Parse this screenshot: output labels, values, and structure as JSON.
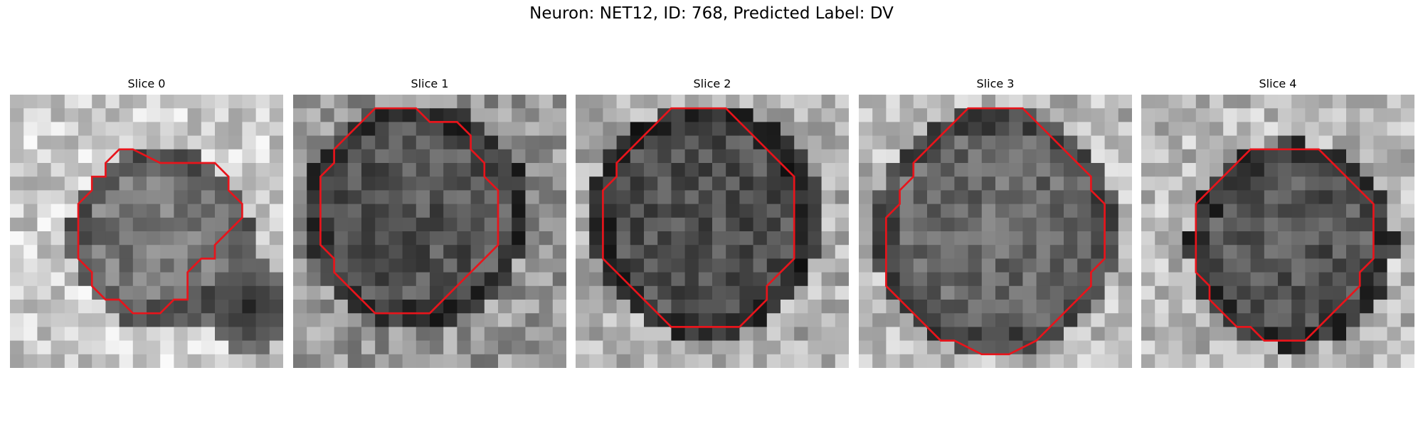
{
  "figure": {
    "title": "Neuron: NET12, ID: 768, Predicted Label: DV"
  },
  "colors": {
    "contour": "#e8141b",
    "background": "#ffffff"
  },
  "panels": [
    {
      "title": "Slice 0",
      "content": "grayscale microscopy crop with a bright surround and a darker gray roughly circular cell; red traced outline around the cell; darkest region at the lower right",
      "contour": [
        [
          11,
          5
        ],
        [
          15,
          5
        ],
        [
          16,
          6
        ],
        [
          16,
          7
        ],
        [
          17,
          8
        ],
        [
          17,
          9
        ],
        [
          16,
          10
        ],
        [
          15,
          11
        ],
        [
          15,
          12
        ],
        [
          14,
          12
        ],
        [
          13,
          13
        ],
        [
          13,
          15
        ],
        [
          12,
          15
        ],
        [
          11,
          16
        ],
        [
          9,
          16
        ],
        [
          8,
          15
        ],
        [
          7,
          15
        ],
        [
          6,
          14
        ],
        [
          6,
          13
        ],
        [
          5,
          12
        ],
        [
          5,
          11
        ],
        [
          5,
          10
        ],
        [
          5,
          9
        ],
        [
          5,
          8
        ],
        [
          6,
          7
        ],
        [
          6,
          6
        ],
        [
          7,
          6
        ],
        [
          7,
          5
        ],
        [
          8,
          4
        ],
        [
          9,
          4
        ]
      ]
    },
    {
      "title": "Slice 1",
      "content": "grayscale crop with a dark roughly circular cell body filling most of the frame; red traced outline",
      "contour": [
        [
          6,
          1
        ],
        [
          9,
          1
        ],
        [
          10,
          2
        ],
        [
          12,
          2
        ],
        [
          13,
          3
        ],
        [
          13,
          4
        ],
        [
          14,
          5
        ],
        [
          14,
          6
        ],
        [
          15,
          7
        ],
        [
          15,
          8
        ],
        [
          15,
          9
        ],
        [
          15,
          10
        ],
        [
          15,
          11
        ],
        [
          14,
          12
        ],
        [
          13,
          13
        ],
        [
          12,
          14
        ],
        [
          11,
          15
        ],
        [
          10,
          16
        ],
        [
          9,
          16
        ],
        [
          8,
          16
        ],
        [
          7,
          16
        ],
        [
          6,
          16
        ],
        [
          5,
          15
        ],
        [
          4,
          14
        ],
        [
          3,
          13
        ],
        [
          3,
          12
        ],
        [
          2,
          11
        ],
        [
          2,
          10
        ],
        [
          2,
          9
        ],
        [
          2,
          8
        ],
        [
          2,
          7
        ],
        [
          2,
          6
        ],
        [
          3,
          5
        ],
        [
          3,
          4
        ],
        [
          4,
          3
        ],
        [
          5,
          2
        ]
      ]
    },
    {
      "title": "Slice 2",
      "content": "grayscale crop with a large dark circular cell centered in the frame; red traced outline",
      "contour": [
        [
          8,
          1
        ],
        [
          11,
          1
        ],
        [
          12,
          2
        ],
        [
          13,
          3
        ],
        [
          14,
          4
        ],
        [
          15,
          5
        ],
        [
          16,
          6
        ],
        [
          16,
          7
        ],
        [
          16,
          8
        ],
        [
          16,
          9
        ],
        [
          16,
          10
        ],
        [
          16,
          11
        ],
        [
          16,
          12
        ],
        [
          15,
          13
        ],
        [
          14,
          14
        ],
        [
          14,
          15
        ],
        [
          13,
          16
        ],
        [
          12,
          17
        ],
        [
          10,
          17
        ],
        [
          8,
          17
        ],
        [
          7,
          17
        ],
        [
          6,
          16
        ],
        [
          5,
          15
        ],
        [
          4,
          14
        ],
        [
          3,
          13
        ],
        [
          2,
          12
        ],
        [
          2,
          11
        ],
        [
          2,
          10
        ],
        [
          2,
          9
        ],
        [
          2,
          8
        ],
        [
          2,
          7
        ],
        [
          3,
          6
        ],
        [
          3,
          5
        ],
        [
          4,
          4
        ],
        [
          5,
          3
        ],
        [
          6,
          2
        ],
        [
          7,
          1
        ]
      ]
    },
    {
      "title": "Slice 3",
      "content": "grayscale crop with a large dark circular cell centered in the frame; red traced outline",
      "contour": [
        [
          8,
          1
        ],
        [
          12,
          1
        ],
        [
          13,
          2
        ],
        [
          14,
          3
        ],
        [
          15,
          4
        ],
        [
          16,
          5
        ],
        [
          17,
          6
        ],
        [
          17,
          7
        ],
        [
          18,
          8
        ],
        [
          18,
          9
        ],
        [
          18,
          10
        ],
        [
          18,
          11
        ],
        [
          18,
          12
        ],
        [
          17,
          13
        ],
        [
          17,
          14
        ],
        [
          16,
          15
        ],
        [
          15,
          16
        ],
        [
          14,
          17
        ],
        [
          13,
          18
        ],
        [
          11,
          19
        ],
        [
          9,
          19
        ],
        [
          7,
          18
        ],
        [
          6,
          18
        ],
        [
          5,
          17
        ],
        [
          4,
          16
        ],
        [
          3,
          15
        ],
        [
          2,
          14
        ],
        [
          2,
          13
        ],
        [
          2,
          12
        ],
        [
          2,
          11
        ],
        [
          2,
          10
        ],
        [
          2,
          9
        ],
        [
          3,
          8
        ],
        [
          3,
          7
        ],
        [
          4,
          6
        ],
        [
          4,
          5
        ],
        [
          5,
          4
        ],
        [
          6,
          3
        ],
        [
          7,
          2
        ]
      ]
    },
    {
      "title": "Slice 4",
      "content": "grayscale crop with a dark circular cell slightly below center; red traced outline",
      "contour": [
        [
          8,
          4
        ],
        [
          13,
          4
        ],
        [
          14,
          5
        ],
        [
          15,
          6
        ],
        [
          16,
          7
        ],
        [
          17,
          8
        ],
        [
          17,
          9
        ],
        [
          17,
          10
        ],
        [
          17,
          11
        ],
        [
          17,
          12
        ],
        [
          16,
          13
        ],
        [
          16,
          14
        ],
        [
          15,
          15
        ],
        [
          14,
          16
        ],
        [
          13,
          17
        ],
        [
          12,
          18
        ],
        [
          10,
          18
        ],
        [
          9,
          18
        ],
        [
          8,
          17
        ],
        [
          7,
          17
        ],
        [
          6,
          16
        ],
        [
          5,
          15
        ],
        [
          5,
          14
        ],
        [
          4,
          13
        ],
        [
          4,
          12
        ],
        [
          4,
          11
        ],
        [
          4,
          10
        ],
        [
          4,
          9
        ],
        [
          4,
          8
        ],
        [
          5,
          7
        ],
        [
          6,
          6
        ],
        [
          7,
          5
        ]
      ]
    }
  ]
}
